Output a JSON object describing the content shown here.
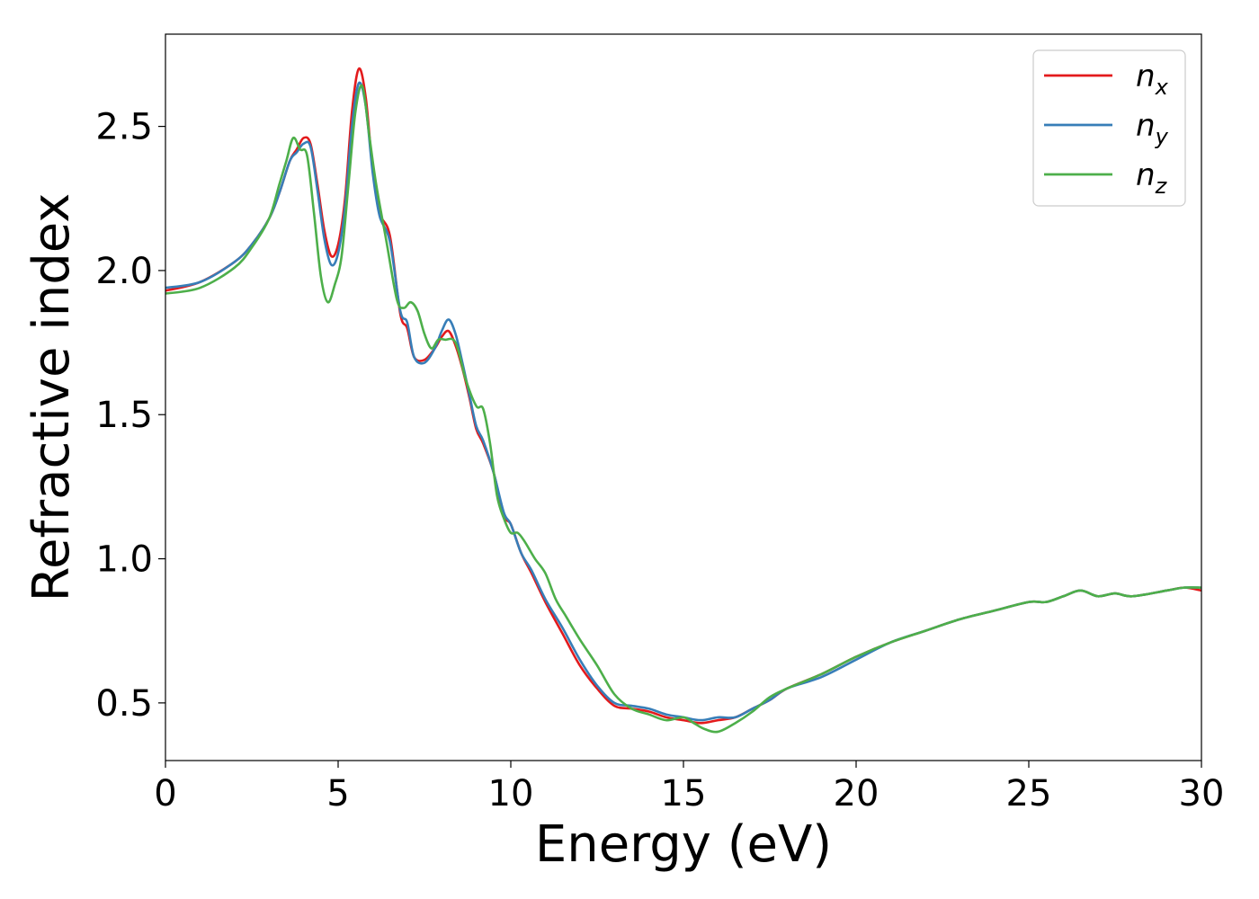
{
  "chart_data": {
    "type": "line",
    "title": "",
    "xlabel": "Energy (eV)",
    "ylabel": "Refractive index",
    "xlim": [
      0,
      30
    ],
    "ylim": [
      0.3,
      2.82
    ],
    "xticks": [
      0,
      5,
      10,
      15,
      20,
      25,
      30
    ],
    "xtick_labels": [
      "0",
      "5",
      "10",
      "15",
      "20",
      "25",
      "30"
    ],
    "yticks": [
      0.5,
      1.0,
      1.5,
      2.0,
      2.5
    ],
    "ytick_labels": [
      "0.5",
      "1.0",
      "1.5",
      "2.0",
      "2.5"
    ],
    "grid": false,
    "legend_position": "top-right",
    "series": [
      {
        "name": "n_x",
        "legend_base": "n",
        "legend_sub": "x",
        "color": "#e31a1c",
        "x": [
          0,
          1,
          2,
          2.5,
          3,
          3.3,
          3.6,
          3.8,
          4.0,
          4.2,
          4.4,
          4.6,
          4.8,
          5.0,
          5.2,
          5.4,
          5.6,
          5.8,
          6.0,
          6.2,
          6.5,
          6.8,
          7.0,
          7.2,
          7.5,
          7.8,
          8.0,
          8.2,
          8.4,
          8.6,
          8.8,
          9.0,
          9.2,
          9.5,
          9.8,
          10.0,
          10.3,
          10.6,
          11.0,
          11.5,
          12.0,
          12.5,
          13.0,
          13.5,
          14.0,
          14.5,
          15.0,
          15.5,
          16.0,
          16.5,
          17.0,
          17.5,
          18.0,
          19.0,
          20.0,
          21.0,
          22.0,
          23.0,
          24.0,
          25.0,
          25.5,
          26.0,
          26.5,
          27.0,
          27.5,
          28.0,
          29.0,
          29.5,
          30.0
        ],
        "y": [
          1.93,
          1.96,
          2.03,
          2.09,
          2.18,
          2.27,
          2.38,
          2.42,
          2.46,
          2.44,
          2.3,
          2.14,
          2.05,
          2.09,
          2.25,
          2.55,
          2.7,
          2.6,
          2.35,
          2.2,
          2.12,
          1.85,
          1.8,
          1.7,
          1.69,
          1.73,
          1.77,
          1.79,
          1.74,
          1.66,
          1.56,
          1.45,
          1.4,
          1.3,
          1.15,
          1.12,
          1.02,
          0.95,
          0.85,
          0.74,
          0.63,
          0.55,
          0.49,
          0.48,
          0.47,
          0.45,
          0.44,
          0.43,
          0.44,
          0.45,
          0.48,
          0.51,
          0.55,
          0.6,
          0.66,
          0.71,
          0.75,
          0.79,
          0.82,
          0.85,
          0.85,
          0.87,
          0.89,
          0.87,
          0.88,
          0.87,
          0.89,
          0.9,
          0.89
        ]
      },
      {
        "name": "n_y",
        "legend_base": "n",
        "legend_sub": "y",
        "color": "#377eb8",
        "x": [
          0,
          1,
          2,
          2.5,
          3,
          3.3,
          3.6,
          3.8,
          4.0,
          4.2,
          4.4,
          4.6,
          4.8,
          5.0,
          5.2,
          5.4,
          5.6,
          5.8,
          6.0,
          6.2,
          6.5,
          6.8,
          7.0,
          7.2,
          7.5,
          7.8,
          8.0,
          8.2,
          8.4,
          8.6,
          8.8,
          9.0,
          9.2,
          9.5,
          9.8,
          10.0,
          10.3,
          10.6,
          11.0,
          11.5,
          12.0,
          12.5,
          13.0,
          13.5,
          14.0,
          14.5,
          15.0,
          15.5,
          16.0,
          16.5,
          17.0,
          17.5,
          18.0,
          19.0,
          20.0,
          21.0,
          22.0,
          23.0,
          24.0,
          25.0,
          25.5,
          26.0,
          26.5,
          27.0,
          27.5,
          28.0,
          29.0,
          29.5,
          30.0
        ],
        "y": [
          1.94,
          1.96,
          2.03,
          2.09,
          2.18,
          2.27,
          2.38,
          2.41,
          2.44,
          2.43,
          2.28,
          2.11,
          2.02,
          2.06,
          2.22,
          2.5,
          2.65,
          2.57,
          2.34,
          2.19,
          2.1,
          1.86,
          1.82,
          1.7,
          1.68,
          1.73,
          1.79,
          1.83,
          1.78,
          1.68,
          1.57,
          1.46,
          1.41,
          1.3,
          1.16,
          1.12,
          1.02,
          0.96,
          0.86,
          0.76,
          0.65,
          0.56,
          0.5,
          0.49,
          0.48,
          0.46,
          0.45,
          0.44,
          0.45,
          0.45,
          0.48,
          0.51,
          0.55,
          0.59,
          0.65,
          0.71,
          0.75,
          0.79,
          0.82,
          0.85,
          0.85,
          0.87,
          0.89,
          0.87,
          0.88,
          0.87,
          0.89,
          0.9,
          0.9
        ]
      },
      {
        "name": "n_z",
        "legend_base": "n",
        "legend_sub": "z",
        "color": "#4daf4a",
        "x": [
          0,
          1,
          2,
          2.5,
          3,
          3.3,
          3.5,
          3.7,
          3.9,
          4.1,
          4.3,
          4.5,
          4.7,
          4.9,
          5.1,
          5.3,
          5.5,
          5.7,
          5.9,
          6.1,
          6.4,
          6.7,
          6.9,
          7.1,
          7.3,
          7.5,
          7.7,
          7.9,
          8.1,
          8.4,
          8.7,
          9.0,
          9.2,
          9.4,
          9.6,
          9.8,
          10.0,
          10.2,
          10.4,
          10.7,
          11.0,
          11.3,
          11.6,
          12.0,
          12.5,
          13.0,
          13.5,
          14.0,
          14.5,
          15.0,
          15.3,
          15.6,
          16.0,
          16.5,
          17.0,
          17.5,
          18.0,
          19.0,
          20.0,
          21.0,
          22.0,
          23.0,
          24.0,
          25.0,
          25.5,
          26.0,
          26.5,
          27.0,
          27.5,
          28.0,
          29.0,
          29.5,
          30.0
        ],
        "y": [
          1.92,
          1.94,
          2.01,
          2.08,
          2.18,
          2.3,
          2.38,
          2.46,
          2.42,
          2.4,
          2.2,
          1.98,
          1.89,
          1.95,
          2.05,
          2.3,
          2.55,
          2.64,
          2.47,
          2.3,
          2.1,
          1.9,
          1.87,
          1.89,
          1.86,
          1.78,
          1.73,
          1.76,
          1.76,
          1.75,
          1.62,
          1.53,
          1.52,
          1.4,
          1.22,
          1.14,
          1.09,
          1.09,
          1.06,
          1.0,
          0.95,
          0.86,
          0.8,
          0.72,
          0.63,
          0.53,
          0.48,
          0.46,
          0.44,
          0.45,
          0.43,
          0.41,
          0.4,
          0.43,
          0.47,
          0.52,
          0.55,
          0.6,
          0.66,
          0.71,
          0.75,
          0.79,
          0.82,
          0.85,
          0.85,
          0.87,
          0.89,
          0.87,
          0.88,
          0.87,
          0.89,
          0.9,
          0.9
        ]
      }
    ]
  }
}
